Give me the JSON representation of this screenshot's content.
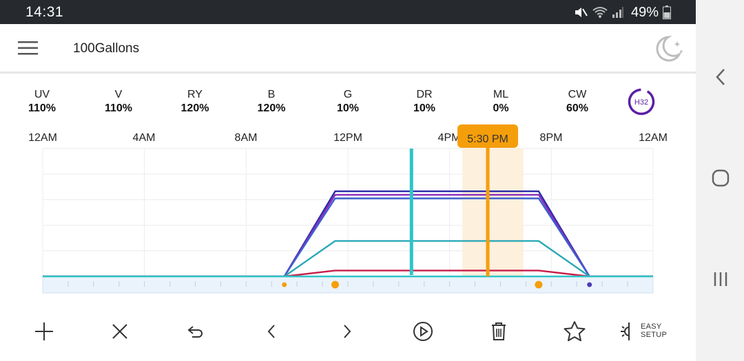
{
  "status_bar": {
    "time": "14:31",
    "battery": "49%",
    "icons": [
      "mute-icon",
      "wifi-icon",
      "signal-icon",
      "battery-icon"
    ]
  },
  "app_bar": {
    "title": "100Gallons",
    "menu_icon": "hamburger-menu-icon",
    "night_icon": "moon-stars-icon"
  },
  "channels": [
    {
      "name": "UV",
      "value": "110%"
    },
    {
      "name": "V",
      "value": "110%"
    },
    {
      "name": "RY",
      "value": "120%"
    },
    {
      "name": "B",
      "value": "120%"
    },
    {
      "name": "G",
      "value": "10%"
    },
    {
      "name": "DR",
      "value": "10%"
    },
    {
      "name": "ML",
      "value": "0%"
    },
    {
      "name": "CW",
      "value": "60%"
    }
  ],
  "device_badge": "H32",
  "time_axis": [
    "12AM",
    "4AM",
    "8AM",
    "12PM",
    "4PM",
    "8PM",
    "12AM"
  ],
  "cursor_label": "5:30 PM",
  "colors": {
    "accent": "#f59e0b",
    "current_time": "#2ec4c8",
    "badge": "#5b1fa6",
    "timeline_bg": "#eaf3fb"
  },
  "chart_data": {
    "type": "line",
    "x_unit": "hour of day",
    "xlim": [
      0,
      24
    ],
    "ylim": [
      0,
      100
    ],
    "current_time_hour": 14.5,
    "cursor_hour": 17.5,
    "cursor_window": [
      16.5,
      18.9
    ],
    "series": [
      {
        "color": "#2a2aa8",
        "points": [
          [
            0,
            0
          ],
          [
            9.5,
            0
          ],
          [
            11.5,
            72
          ],
          [
            19.5,
            72
          ],
          [
            21.5,
            0
          ],
          [
            24,
            0
          ]
        ]
      },
      {
        "color": "#8a2bb8",
        "points": [
          [
            0,
            0
          ],
          [
            9.5,
            0
          ],
          [
            11.5,
            69
          ],
          [
            19.5,
            69
          ],
          [
            21.5,
            0
          ],
          [
            24,
            0
          ]
        ]
      },
      {
        "color": "#3b5fd0",
        "points": [
          [
            0,
            0
          ],
          [
            9.5,
            0
          ],
          [
            11.5,
            66
          ],
          [
            19.5,
            66
          ],
          [
            21.5,
            0
          ],
          [
            24,
            0
          ]
        ]
      },
      {
        "color": "#2aa8b8",
        "points": [
          [
            0,
            0
          ],
          [
            9.5,
            0
          ],
          [
            11.5,
            30
          ],
          [
            19.5,
            30
          ],
          [
            21.5,
            0
          ],
          [
            24,
            0
          ]
        ]
      },
      {
        "color": "#c81e4a",
        "points": [
          [
            0,
            0
          ],
          [
            9.5,
            0
          ],
          [
            11.5,
            5
          ],
          [
            19.5,
            5
          ],
          [
            21.5,
            0
          ],
          [
            24,
            0
          ]
        ]
      }
    ],
    "timeline_markers": [
      {
        "hour": 9.5,
        "size": "small",
        "color": "#f59e0b"
      },
      {
        "hour": 11.5,
        "size": "large",
        "color": "#f59e0b"
      },
      {
        "hour": 19.5,
        "size": "large",
        "color": "#f59e0b"
      },
      {
        "hour": 21.5,
        "size": "small",
        "color": "#4b3bb8"
      }
    ]
  },
  "toolbar": {
    "buttons": [
      "add-icon",
      "close-icon",
      "undo-icon",
      "chevron-left-icon",
      "chevron-right-icon",
      "play-icon",
      "trash-icon",
      "star-icon",
      "easy-setup-icon"
    ],
    "easy_setup_line1": "EASY",
    "easy_setup_line2": "SETUP"
  },
  "nav_bar": [
    "back-icon",
    "home-icon",
    "recents-icon"
  ]
}
